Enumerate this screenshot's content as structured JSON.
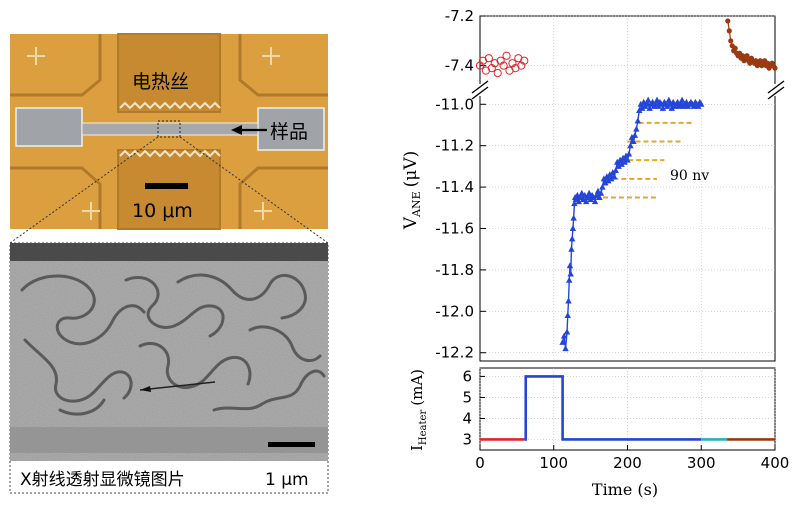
{
  "figure": {
    "device_panel": {
      "heater_label": "电热丝",
      "sample_label": "样品",
      "scale_label": "10 μm"
    },
    "xray_panel": {
      "caption": "X射线透射显微镜图片",
      "scale_label": "1 μm"
    }
  },
  "chart_data": [
    {
      "type": "scatter",
      "ylabel": "V_ANE (μV)",
      "ylabel_main": "V",
      "ylabel_sub": "ANE",
      "ylabel_unit": "(μV)",
      "upper_axis": {
        "ticks": [
          -7.2,
          -7.4
        ],
        "ylim": [
          -7.49,
          -7.2
        ]
      },
      "lower_axis": {
        "ticks": [
          -11.0,
          -11.2,
          -11.4,
          -11.6,
          -11.8,
          -12.0,
          -12.2
        ],
        "ylim": [
          -12.24,
          -10.96
        ]
      },
      "xlim": [
        0,
        400
      ],
      "annotation": "90 nv",
      "colors": {
        "red": "#e0242b",
        "blue": "#2446d8",
        "brown": "#9b3a10",
        "orange": "#e8a52a"
      },
      "series": [
        {
          "color": "red",
          "x": [
            0,
            4,
            8,
            12,
            16,
            20,
            24,
            28,
            32,
            36,
            40,
            44,
            48,
            52,
            56,
            60
          ],
          "y": [
            -7.4,
            -7.38,
            -7.42,
            -7.37,
            -7.41,
            -7.39,
            -7.43,
            -7.38,
            -7.4,
            -7.36,
            -7.42,
            -7.39,
            -7.41,
            -7.37,
            -7.4,
            -7.38
          ]
        },
        {
          "color": "blue",
          "x": [
            112,
            114,
            116,
            118,
            119,
            120,
            121,
            122,
            123,
            124,
            125,
            126,
            127,
            128,
            129,
            130,
            132,
            134,
            136,
            138,
            140,
            142,
            144,
            146,
            148,
            150,
            152,
            154,
            156,
            158,
            160,
            162,
            164,
            166,
            168,
            170,
            172,
            174,
            176,
            178,
            180,
            182,
            184,
            186,
            188,
            190,
            192,
            194,
            196,
            198,
            200,
            202,
            204,
            206,
            208,
            210,
            212,
            214,
            216,
            218,
            220,
            222,
            224,
            226,
            228,
            230,
            232,
            234,
            236,
            238,
            240,
            242,
            244,
            246,
            248,
            250,
            252,
            254,
            256,
            258,
            260,
            262,
            264,
            266,
            268,
            270,
            272,
            274,
            276,
            278,
            280,
            282,
            284,
            286,
            288,
            290,
            292,
            294,
            296,
            298,
            300
          ],
          "y": [
            -12.15,
            -12.12,
            -12.18,
            -12.1,
            -12.02,
            -11.95,
            -11.85,
            -11.78,
            -11.82,
            -11.7,
            -11.65,
            -11.6,
            -11.55,
            -11.48,
            -11.45,
            -11.46,
            -11.44,
            -11.47,
            -11.45,
            -11.43,
            -11.46,
            -11.44,
            -11.47,
            -11.45,
            -11.43,
            -11.46,
            -11.44,
            -11.45,
            -11.47,
            -11.44,
            -11.42,
            -11.45,
            -11.43,
            -11.4,
            -11.36,
            -11.38,
            -11.35,
            -11.37,
            -11.34,
            -11.36,
            -11.33,
            -11.35,
            -11.32,
            -11.28,
            -11.3,
            -11.27,
            -11.29,
            -11.26,
            -11.28,
            -11.25,
            -11.27,
            -11.24,
            -11.2,
            -11.16,
            -11.18,
            -11.15,
            -11.12,
            -11.08,
            -11.03,
            -11.0,
            -11.02,
            -10.99,
            -11.01,
            -11.0,
            -10.98,
            -11.02,
            -11.0,
            -10.99,
            -11.01,
            -11.0,
            -10.98,
            -11.01,
            -10.99,
            -11.0,
            -11.02,
            -10.99,
            -11.0,
            -11.01,
            -10.98,
            -11.0,
            -11.02,
            -10.99,
            -11.01,
            -11.0,
            -10.99,
            -11.01,
            -11.0,
            -10.98,
            -11.01,
            -11.0,
            -10.99,
            -11.01,
            -11.0,
            -10.99,
            -11.0,
            -11.01,
            -10.99,
            -11.0,
            -11.01,
            -10.99,
            -11.0
          ]
        },
        {
          "color": "brown",
          "x": [
            336,
            338,
            340,
            342,
            344,
            346,
            348,
            350,
            352,
            354,
            356,
            358,
            360,
            362,
            364,
            366,
            368,
            370,
            372,
            374,
            376,
            378,
            380,
            382,
            384,
            386,
            388,
            390,
            392,
            394,
            396,
            398,
            400
          ],
          "y": [
            -7.22,
            -7.26,
            -7.3,
            -7.32,
            -7.34,
            -7.33,
            -7.35,
            -7.36,
            -7.35,
            -7.37,
            -7.36,
            -7.38,
            -7.37,
            -7.36,
            -7.38,
            -7.39,
            -7.37,
            -7.38,
            -7.39,
            -7.38,
            -7.4,
            -7.39,
            -7.38,
            -7.4,
            -7.39,
            -7.38,
            -7.4,
            -7.39,
            -7.41,
            -7.4,
            -7.39,
            -7.4,
            -7.41
          ]
        }
      ],
      "steps": [
        {
          "y": -11.45,
          "x": [
            145,
            240
          ]
        },
        {
          "y": -11.36,
          "x": [
            170,
            240
          ]
        },
        {
          "y": -11.27,
          "x": [
            190,
            250
          ]
        },
        {
          "y": -11.18,
          "x": [
            200,
            275
          ]
        },
        {
          "y": -11.09,
          "x": [
            215,
            290
          ]
        },
        {
          "y": -11.0,
          "x": [
            230,
            305
          ]
        }
      ]
    },
    {
      "type": "line",
      "xlabel": "Time (s)",
      "ylabel": "I_Heater (mA)",
      "ylabel_main": "I",
      "ylabel_sub": "Heater",
      "ylabel_unit": "(mA)",
      "xticks": [
        0,
        100,
        200,
        300,
        400
      ],
      "yticks": [
        3,
        4,
        5,
        6
      ],
      "xlim": [
        0,
        400
      ],
      "ylim": [
        2.5,
        6.4
      ],
      "segments": [
        {
          "color": "red",
          "x": [
            0,
            60
          ],
          "y": [
            3,
            3
          ]
        },
        {
          "color": "blue",
          "x": [
            60,
            62,
            62,
            112,
            112,
            300
          ],
          "y": [
            3,
            3,
            6,
            6,
            3,
            3
          ]
        },
        {
          "color": "teal",
          "x": [
            300,
            335
          ],
          "y": [
            3,
            3
          ]
        },
        {
          "color": "brown",
          "x": [
            335,
            400
          ],
          "y": [
            3,
            3
          ]
        }
      ],
      "colors": {
        "teal": "#21b4b4"
      }
    }
  ]
}
